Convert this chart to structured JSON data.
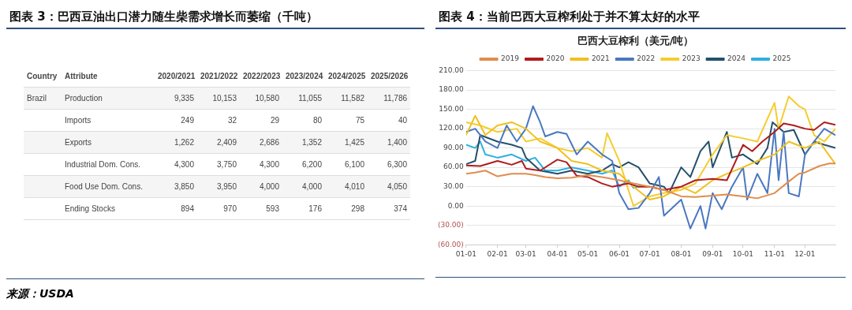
{
  "chart_data": [
    {
      "type": "other",
      "title": "图表 3：巴西豆油出口潜力随生柴需求增长而萎缩（千吨）",
      "categories": [
        "2020/2021",
        "2021/2022",
        "2022/2023",
        "2023/2024",
        "2024/2025",
        "2025/2026"
      ],
      "y_categories": [
        "Production",
        "Imports",
        "Exports",
        "Industrial Dom. Cons.",
        "Food Use Dom. Cons.",
        "Ending Stocks"
      ],
      "cells": [
        [
          "9,335",
          "10,153",
          "10,580",
          "11,055",
          "11,582",
          "11,786"
        ],
        [
          "249",
          "32",
          "29",
          "80",
          "75",
          "40"
        ],
        [
          "1,262",
          "2,409",
          "2,686",
          "1,352",
          "1,425",
          "1,400"
        ],
        [
          "4,300",
          "3,750",
          "4,300",
          "6,200",
          "6,100",
          "6,300"
        ],
        [
          "3,850",
          "3,950",
          "4,000",
          "4,000",
          "4,010",
          "4,050"
        ],
        [
          "894",
          "970",
          "593",
          "176",
          "298",
          "374"
        ]
      ],
      "annotations": [
        "Country",
        "Attribute",
        "Brazil",
        "来源：USDA"
      ]
    },
    {
      "type": "line",
      "title": "图表 4：当前巴西大豆榨利处于并不算太好的水平",
      "subtitle": "巴西大豆榨利（美元/吨）",
      "xlim": [
        "--01-01",
        "--12-31"
      ],
      "xticks": [
        {
          "value": "--01-01",
          "label": "01-01"
        },
        {
          "value": "--02-01",
          "label": "02-01"
        },
        {
          "value": "--03-01",
          "label": "03-01"
        },
        {
          "value": "--04-01",
          "label": "04-01"
        },
        {
          "value": "--05-01",
          "label": "05-01"
        },
        {
          "value": "--06-01",
          "label": "06-01"
        },
        {
          "value": "--07-01",
          "label": "07-01"
        },
        {
          "value": "--08-01",
          "label": "08-01"
        },
        {
          "value": "--09-01",
          "label": "09-01"
        },
        {
          "value": "--10-01",
          "label": "10-01"
        },
        {
          "value": "--11-01",
          "label": "11-01"
        },
        {
          "value": "--12-01",
          "label": "12-01"
        }
      ],
      "ylim": [
        -60,
        210
      ],
      "yticks": [
        {
          "value": -60,
          "label": "(60.00)"
        },
        {
          "value": -30,
          "label": "(30.00)"
        },
        {
          "value": 0,
          "label": "0.00"
        },
        {
          "value": 30,
          "label": "30.00"
        },
        {
          "value": 60,
          "label": "60.00"
        },
        {
          "value": 90,
          "label": "90.00"
        },
        {
          "value": 120,
          "label": "120.00"
        },
        {
          "value": 150,
          "label": "150.00"
        },
        {
          "value": 180,
          "label": "180.00"
        },
        {
          "value": 210,
          "label": "210.00"
        }
      ],
      "grid": "y",
      "legend": "top",
      "marker": "none",
      "line_style": "solid",
      "series": [
        {
          "name": "2019",
          "color": "#e08c4d",
          "x": [
            "--01-01",
            "--01-10",
            "--01-20",
            "--02-01",
            "--02-15",
            "--03-01",
            "--03-10",
            "--03-20",
            "--04-01",
            "--04-15",
            "--05-01",
            "--05-15",
            "--06-01",
            "--06-15",
            "--07-01",
            "--07-15",
            "--08-01",
            "--08-15",
            "--09-01",
            "--09-15",
            "--10-01",
            "--10-15",
            "--11-01",
            "--11-15",
            "--11-25",
            "--12-01",
            "--12-15",
            "--12-25",
            "--12-31"
          ],
          "values": [
            50,
            52,
            55,
            46,
            50,
            50,
            48,
            45,
            43,
            44,
            48,
            45,
            40,
            35,
            30,
            25,
            15,
            14,
            16,
            18,
            15,
            12,
            20,
            38,
            50,
            52,
            62,
            66,
            66
          ]
        },
        {
          "name": "2020",
          "color": "#b01c1c",
          "x": [
            "--01-01",
            "--01-15",
            "--02-01",
            "--02-15",
            "--02-25",
            "--03-01",
            "--03-15",
            "--04-01",
            "--04-10",
            "--04-20",
            "--05-01",
            "--05-15",
            "--05-25",
            "--06-10",
            "--06-20",
            "--07-01",
            "--07-15",
            "--08-01",
            "--08-15",
            "--09-01",
            "--09-15",
            "--10-01",
            "--10-10",
            "--10-20",
            "--11-01",
            "--11-10",
            "--11-20",
            "--12-01",
            "--12-10",
            "--12-20",
            "--12-31"
          ],
          "values": [
            63,
            62,
            70,
            64,
            70,
            58,
            55,
            72,
            68,
            47,
            45,
            35,
            30,
            35,
            30,
            30,
            25,
            30,
            40,
            42,
            40,
            95,
            85,
            100,
            115,
            128,
            125,
            120,
            118,
            130,
            126
          ]
        },
        {
          "name": "2021",
          "color": "#f0c020",
          "x": [
            "--01-01",
            "--01-10",
            "--01-20",
            "--02-01",
            "--02-15",
            "--03-01",
            "--03-15",
            "--04-01",
            "--04-15",
            "--05-01",
            "--05-15",
            "--06-01",
            "--06-15",
            "--07-01",
            "--07-15",
            "--08-01",
            "--08-15",
            "--09-01",
            "--09-15",
            "--10-01",
            "--10-15",
            "--11-01",
            "--11-15",
            "--12-01",
            "--12-15",
            "--12-31"
          ],
          "values": [
            110,
            140,
            110,
            125,
            130,
            120,
            100,
            90,
            70,
            65,
            55,
            50,
            30,
            10,
            15,
            30,
            20,
            40,
            50,
            60,
            70,
            80,
            100,
            90,
            100,
            65
          ]
        },
        {
          "name": "2022",
          "color": "#4a78c0",
          "x": [
            "--01-01",
            "--01-10",
            "--01-20",
            "--02-01",
            "--02-10",
            "--02-20",
            "--03-01",
            "--03-08",
            "--03-15",
            "--03-20",
            "--04-01",
            "--04-10",
            "--04-20",
            "--05-01",
            "--05-15",
            "--05-25",
            "--06-01",
            "--06-10",
            "--06-20",
            "--07-01",
            "--07-10",
            "--07-15",
            "--08-01",
            "--08-10",
            "--08-20",
            "--08-25",
            "--09-01",
            "--09-10",
            "--09-20",
            "--10-01",
            "--10-05",
            "--10-15",
            "--10-25",
            "--11-01",
            "--11-05",
            "--11-10",
            "--11-15",
            "--11-25",
            "--12-01",
            "--12-10",
            "--12-20",
            "--12-31"
          ],
          "values": [
            115,
            120,
            100,
            90,
            125,
            100,
            120,
            155,
            130,
            108,
            115,
            112,
            80,
            100,
            80,
            70,
            20,
            -5,
            -3,
            20,
            45,
            -15,
            10,
            -35,
            0,
            -35,
            20,
            -5,
            30,
            60,
            10,
            50,
            20,
            120,
            40,
            115,
            20,
            15,
            80,
            100,
            120,
            110
          ]
        },
        {
          "name": "2023",
          "color": "#f5cc30",
          "x": [
            "--01-01",
            "--01-15",
            "--02-01",
            "--02-20",
            "--03-01",
            "--03-15",
            "--04-01",
            "--04-15",
            "--05-01",
            "--05-15",
            "--05-20",
            "--06-01",
            "--06-15",
            "--07-01",
            "--07-15",
            "--08-01",
            "--08-15",
            "--09-01",
            "--09-15",
            "--10-01",
            "--10-15",
            "--11-01",
            "--11-05",
            "--11-15",
            "--11-25",
            "--12-01",
            "--12-10",
            "--12-20",
            "--12-31"
          ],
          "values": [
            130,
            125,
            115,
            120,
            100,
            105,
            90,
            85,
            90,
            75,
            113,
            70,
            0,
            15,
            20,
            25,
            35,
            80,
            110,
            105,
            100,
            160,
            120,
            170,
            155,
            150,
            110,
            100,
            120
          ]
        },
        {
          "name": "2024",
          "color": "#25506a",
          "x": [
            "--01-01",
            "--01-10",
            "--01-15",
            "--02-01",
            "--02-15",
            "--02-25",
            "--03-01",
            "--03-15",
            "--04-01",
            "--04-15",
            "--05-01",
            "--05-15",
            "--05-25",
            "--06-01",
            "--06-10",
            "--06-20",
            "--07-01",
            "--07-15",
            "--07-20",
            "--08-01",
            "--08-10",
            "--08-20",
            "--08-28",
            "--09-01",
            "--09-15",
            "--09-20",
            "--10-01",
            "--10-15",
            "--10-25",
            "--10-30",
            "--11-10",
            "--11-20",
            "--12-01",
            "--12-10",
            "--12-20",
            "--12-31"
          ],
          "values": [
            65,
            70,
            110,
            100,
            95,
            90,
            75,
            55,
            50,
            55,
            50,
            55,
            65,
            60,
            68,
            60,
            35,
            30,
            20,
            60,
            45,
            85,
            100,
            60,
            115,
            75,
            80,
            65,
            90,
            130,
            115,
            118,
            80,
            100,
            95,
            90
          ]
        },
        {
          "name": "2025",
          "color": "#2eb0e0",
          "x": [
            "--01-01",
            "--01-10",
            "--01-15",
            "--01-20",
            "--02-01",
            "--02-15",
            "--03-01",
            "--03-10",
            "--03-20",
            "--04-01",
            "--04-15",
            "--05-01",
            "--05-15",
            "--05-25",
            "--06-01",
            "--06-10",
            "--06-15",
            "--06-25"
          ],
          "values": [
            95,
            90,
            100,
            80,
            75,
            80,
            70,
            75,
            55,
            55,
            60,
            55,
            50,
            55,
            30,
            40,
            28,
            32
          ]
        }
      ]
    }
  ]
}
